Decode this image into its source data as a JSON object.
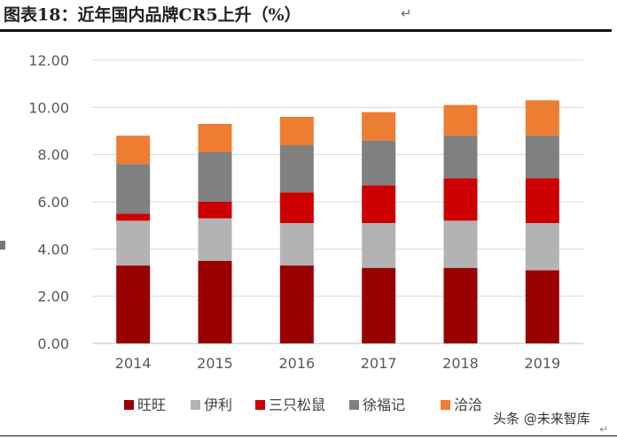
{
  "header": {
    "title": "图表18：近年国内品牌CR5上升（%）",
    "return_glyph": "↵"
  },
  "footer": {
    "watermark": "头条 @未来智库"
  },
  "colors": {
    "旺旺": "#990000",
    "伊利": "#b3b3b3",
    "三只松鼠": "#cc0000",
    "徐福记": "#808080",
    "洽洽": "#ed7d31"
  },
  "chart_data": {
    "type": "bar",
    "stacked": true,
    "title": "图表18：近年国内品牌CR5上升（%）",
    "xlabel": "",
    "ylabel": "",
    "categories": [
      "2014",
      "2015",
      "2016",
      "2017",
      "2018",
      "2019"
    ],
    "y_ticks": [
      "0.00",
      "2.00",
      "4.00",
      "6.00",
      "8.00",
      "10.00",
      "12.00"
    ],
    "ylim": [
      0,
      12
    ],
    "grid": true,
    "legend": "bottom",
    "series": [
      {
        "name": "旺旺",
        "color": "#990000",
        "values": [
          3.3,
          3.5,
          3.3,
          3.2,
          3.2,
          3.1
        ]
      },
      {
        "name": "伊利",
        "color": "#b3b3b3",
        "values": [
          1.9,
          1.8,
          1.8,
          1.9,
          2.0,
          2.0
        ]
      },
      {
        "name": "三只松鼠",
        "color": "#cc0000",
        "values": [
          0.3,
          0.7,
          1.3,
          1.6,
          1.8,
          1.9
        ]
      },
      {
        "name": "徐福记",
        "color": "#808080",
        "values": [
          2.1,
          2.1,
          2.0,
          1.9,
          1.8,
          1.8
        ]
      },
      {
        "name": "洽洽",
        "color": "#ed7d31",
        "values": [
          1.2,
          1.2,
          1.2,
          1.2,
          1.3,
          1.5
        ]
      }
    ],
    "legend_labels": [
      "旺旺",
      "伊利",
      "三只松鼠",
      "徐福记",
      "洽洽"
    ]
  }
}
